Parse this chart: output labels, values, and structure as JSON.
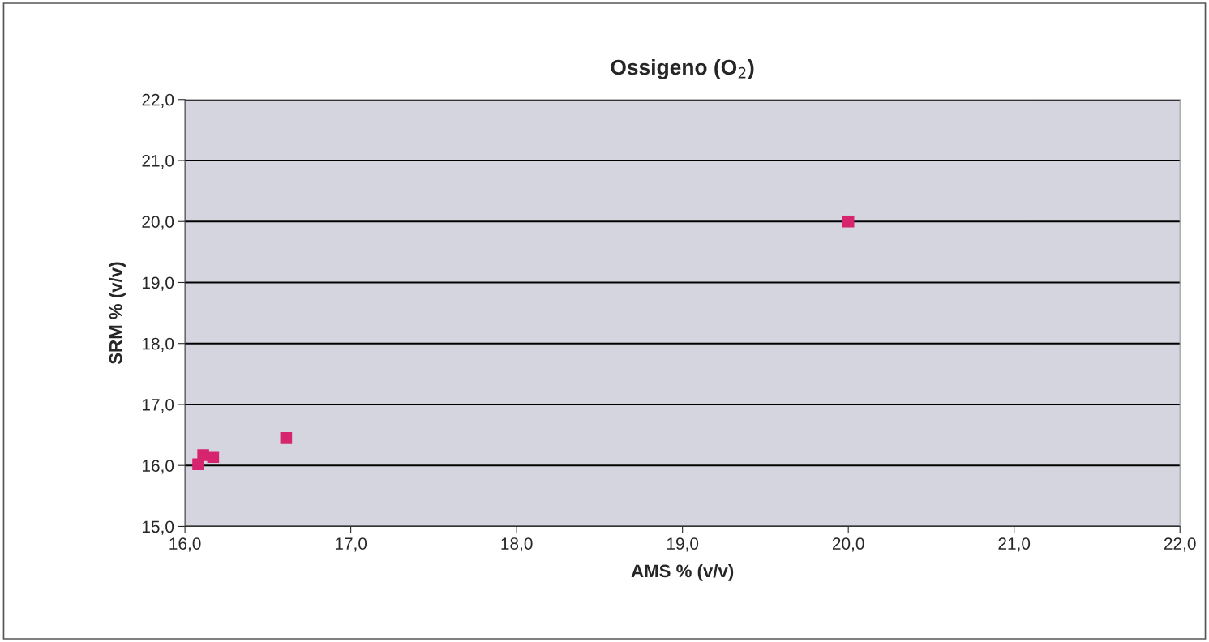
{
  "chart_data": {
    "type": "scatter",
    "title": "Ossigeno (O$_{2}$)",
    "xlabel": "AMS % (v/v)",
    "ylabel": "SRM % (v/v)",
    "x": [
      16.08,
      16.11,
      16.17,
      16.61,
      20.0
    ],
    "series": [
      {
        "color": "#d6246e",
        "values": [
          16.02,
          16.17,
          16.14,
          16.45,
          20.0
        ]
      }
    ],
    "marker": "square",
    "grid": "y",
    "xlim": [
      16,
      22
    ],
    "ylim": [
      15,
      22
    ],
    "xticks": [
      {
        "value": 16,
        "label": "16,0"
      },
      {
        "value": 17,
        "label": "17,0"
      },
      {
        "value": 18,
        "label": "18,0"
      },
      {
        "value": 19,
        "label": "19,0"
      },
      {
        "value": 20,
        "label": "20,0"
      },
      {
        "value": 21,
        "label": "21,0"
      },
      {
        "value": 22,
        "label": "22,0"
      }
    ],
    "yticks": [
      {
        "value": 15,
        "label": "15,0"
      },
      {
        "value": 16,
        "label": "16,0"
      },
      {
        "value": 17,
        "label": "17,0"
      },
      {
        "value": 18,
        "label": "18,0"
      },
      {
        "value": 19,
        "label": "19,0"
      },
      {
        "value": 20,
        "label": "20,0"
      },
      {
        "value": 21,
        "label": "21,0"
      },
      {
        "value": 22,
        "label": "22,0"
      }
    ]
  }
}
